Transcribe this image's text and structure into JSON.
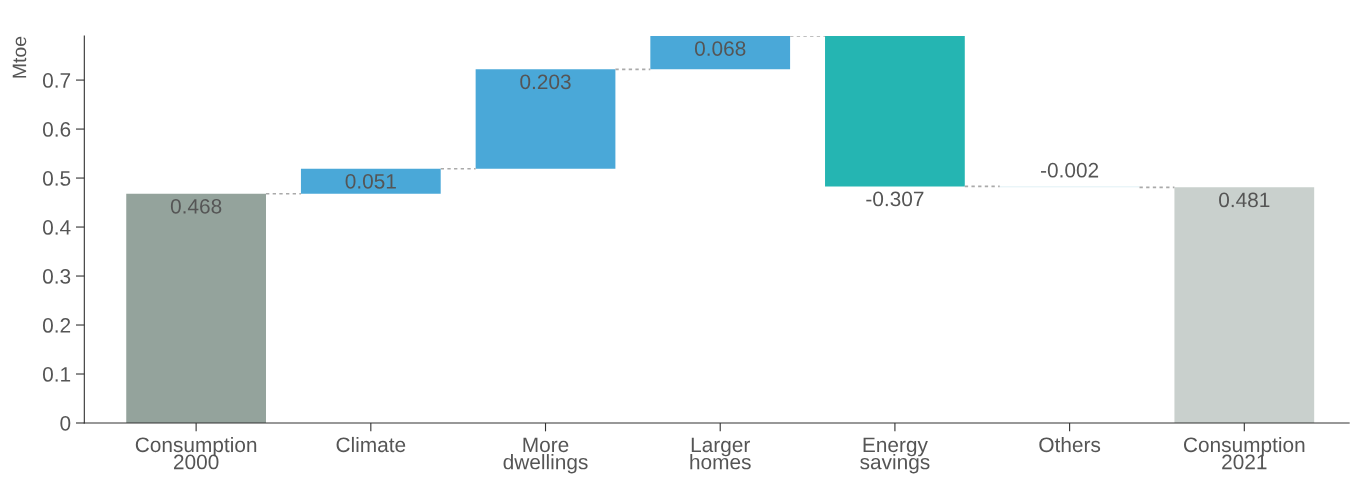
{
  "chart_data": {
    "type": "bar",
    "ylabel": "Mtoe",
    "categories": [
      "Consumption\n2000",
      "Climate",
      "More\ndwellings",
      "Larger\nhomes",
      "Energy\nsavings",
      "Others",
      "Consumption\n2021"
    ],
    "values": [
      0.468,
      0.051,
      0.203,
      0.068,
      -0.307,
      -0.002,
      0.481
    ],
    "base": [
      0,
      0.468,
      0.519,
      0.722,
      0.79,
      0.483,
      0
    ],
    "colors": [
      "#94a39c",
      "#4aa8d8",
      "#4aa8d8",
      "#4aa8d8",
      "#25b5b2",
      "#d6ecf2",
      "#c9d0cd"
    ],
    "ylim": [
      0,
      0.79
    ],
    "yticks": [
      0,
      0.1,
      0.2,
      0.3,
      0.4,
      0.5,
      0.6,
      0.7
    ],
    "data_labels": true,
    "grid": false,
    "legend": false
  }
}
